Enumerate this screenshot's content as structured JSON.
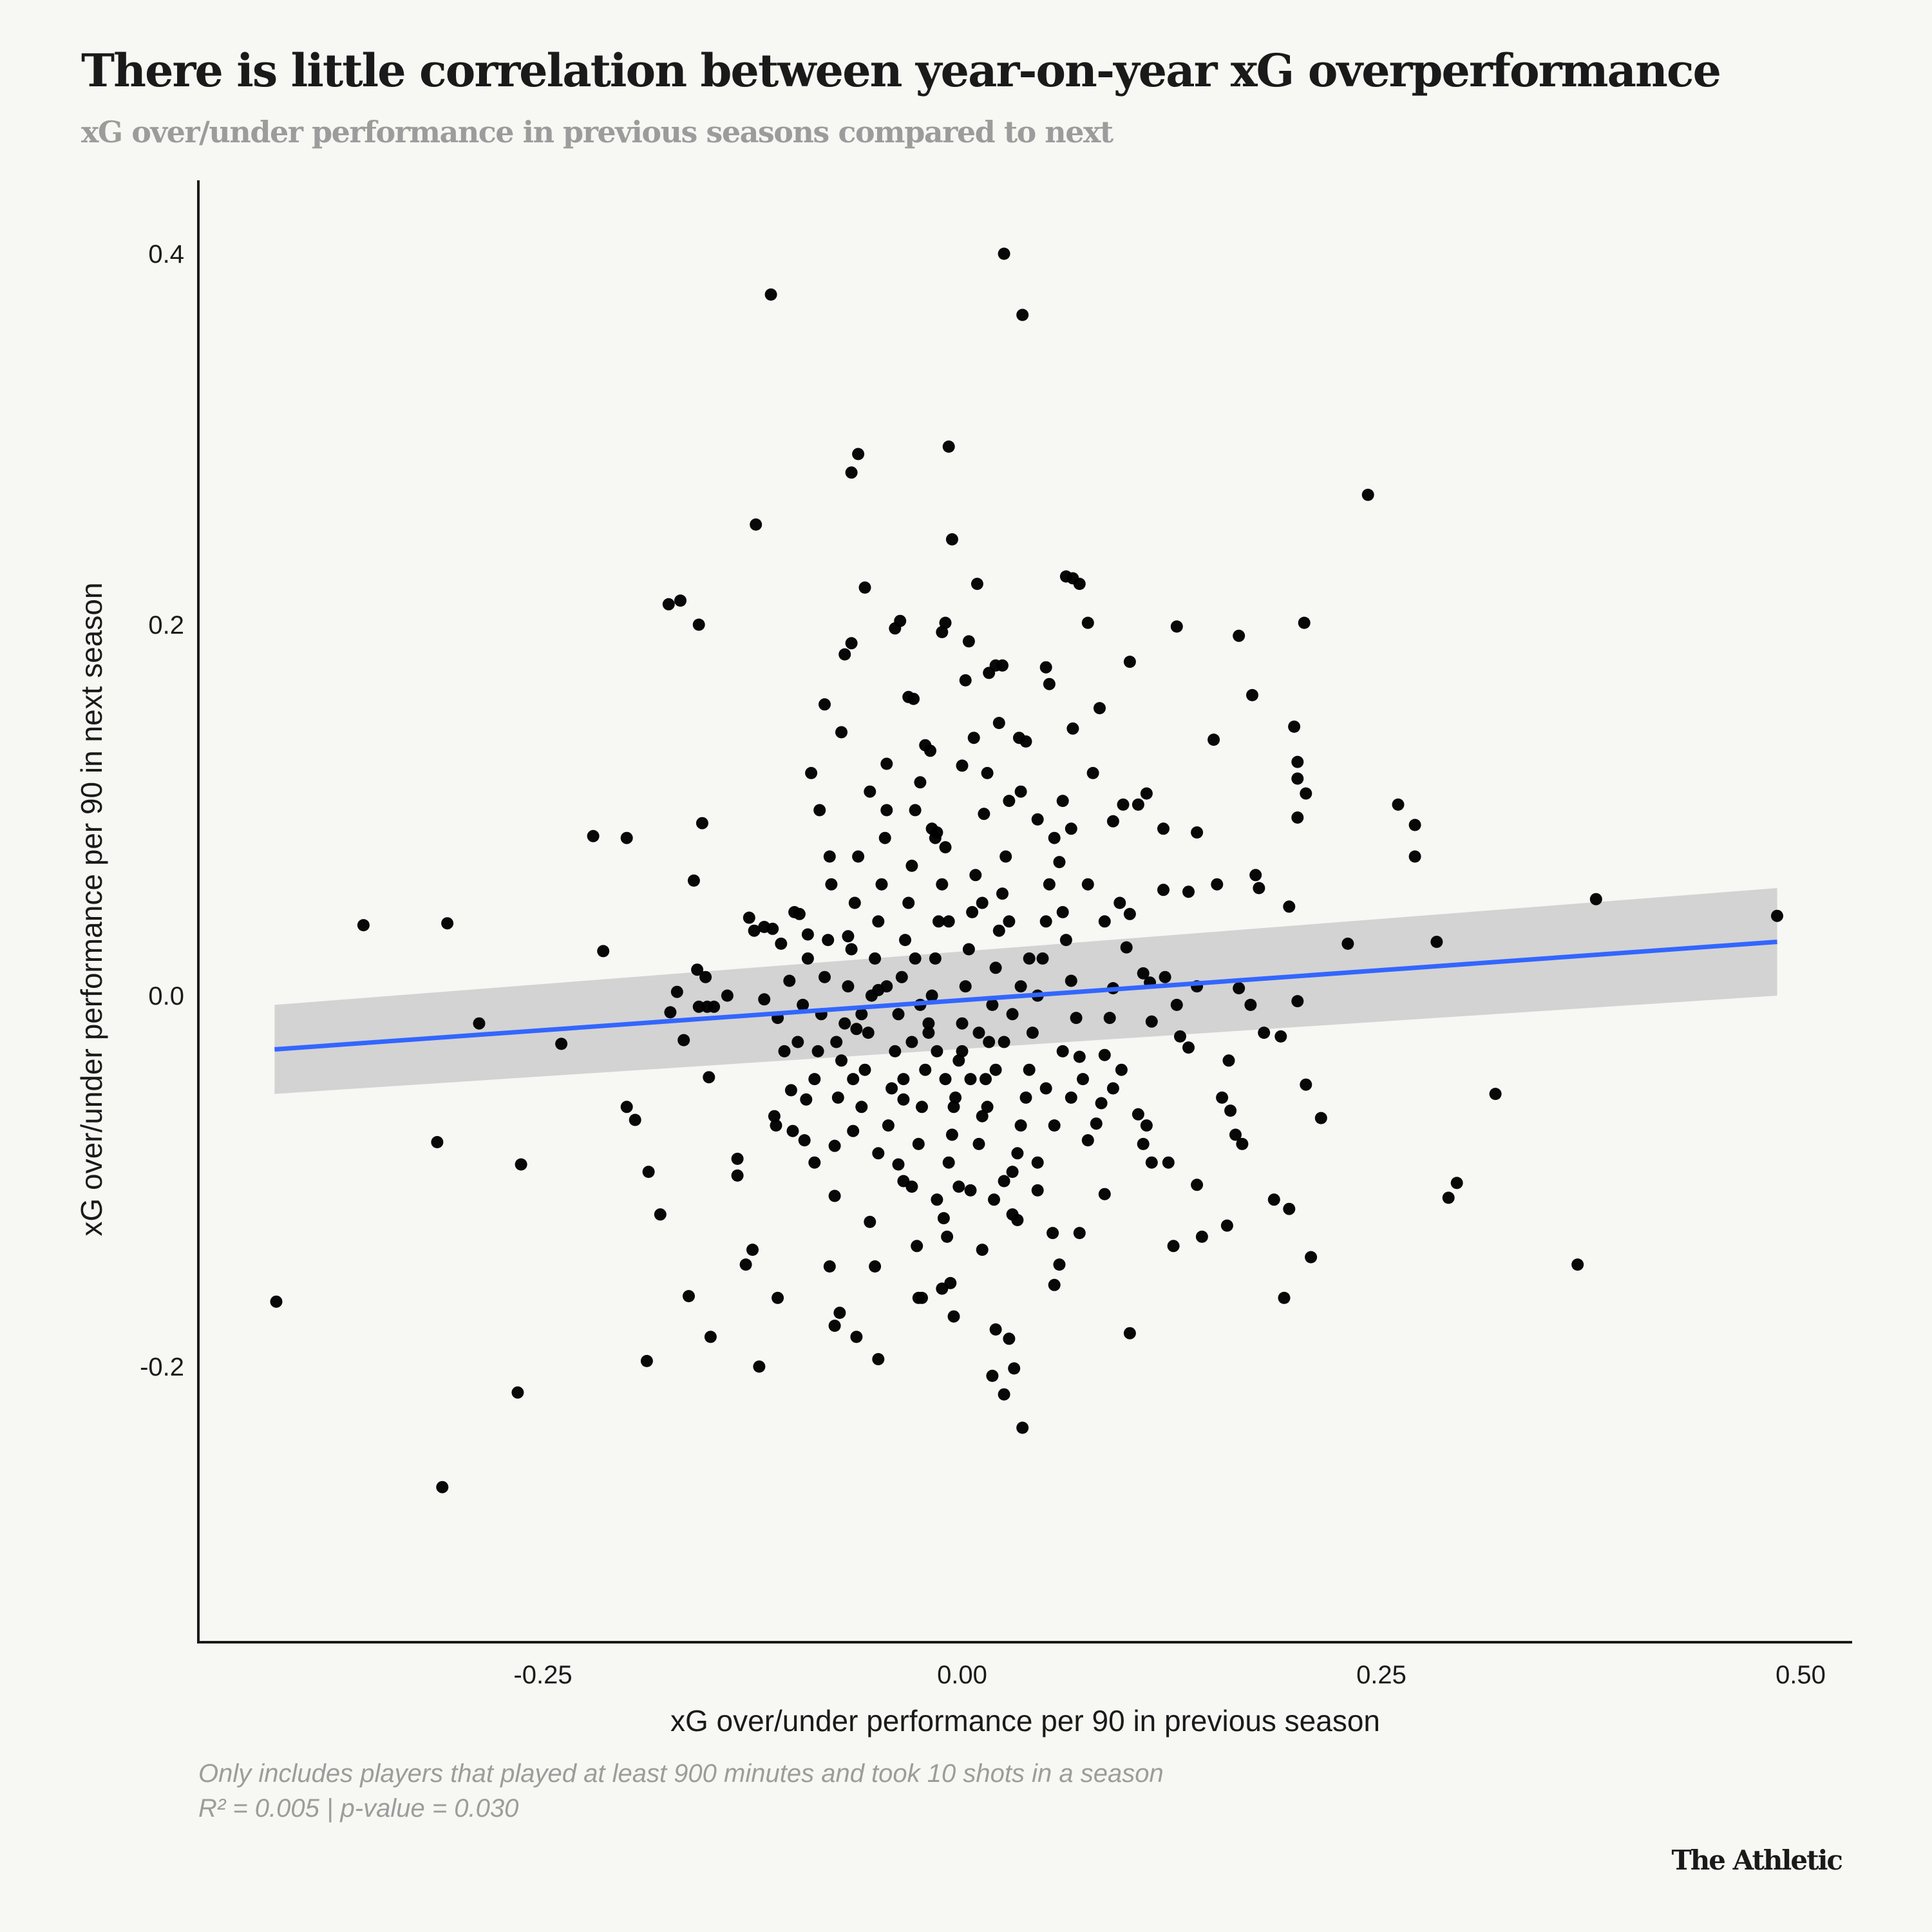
{
  "header": {
    "title": "There is little correlation between year-on-year xG overperformance",
    "subtitle": "xG over/under performance in previous seasons compared to next"
  },
  "notes": {
    "line1": "Only includes players that played at least 900 minutes and took 10 shots in a season",
    "line2": "R² = 0.005 | p-value = 0.030"
  },
  "logo": {
    "text": "The Athletic"
  },
  "colors": {
    "background": "#f7f7f3",
    "points": "#000000",
    "regression": "#3366ff",
    "ci_band": "#d1d1d1",
    "axis": "#1a1a1a"
  },
  "chart_data": {
    "type": "scatter",
    "title": "There is little correlation between year-on-year xG overperformance",
    "subtitle": "xG over/under performance in previous seasons compared to next",
    "xlabel": "xG over/under performance per 90 in previous season",
    "ylabel": "xG over/under performance per 90 in next season",
    "xlim": [
      -0.455,
      0.53
    ],
    "ylim": [
      -0.345,
      0.455
    ],
    "x_ticks": [
      -0.25,
      0.0,
      0.25,
      0.5
    ],
    "x_tick_labels": [
      "-0.25",
      "0.00",
      "0.25",
      "0.50"
    ],
    "y_ticks": [
      -0.2,
      0.0,
      0.2,
      0.4
    ],
    "y_tick_labels": [
      "-0.2",
      "0.0",
      "0.2",
      "0.4"
    ],
    "grid": false,
    "regression": {
      "x": [
        -0.41,
        0.486
      ],
      "y": [
        -0.029,
        0.029
      ],
      "ci_lower": [
        -0.053,
        0.0
      ],
      "ci_upper": [
        -0.005,
        0.058
      ]
    },
    "points": [
      [
        -0.409,
        -0.165
      ],
      [
        -0.357,
        0.038
      ],
      [
        -0.307,
        0.039
      ],
      [
        -0.313,
        -0.079
      ],
      [
        -0.288,
        -0.015
      ],
      [
        -0.263,
        -0.091
      ],
      [
        -0.265,
        -0.214
      ],
      [
        -0.31,
        -0.265
      ],
      [
        -0.239,
        -0.026
      ],
      [
        -0.22,
        0.086
      ],
      [
        -0.214,
        0.024
      ],
      [
        -0.2,
        0.085
      ],
      [
        -0.2,
        -0.06
      ],
      [
        -0.195,
        -0.067
      ],
      [
        -0.187,
        -0.095
      ],
      [
        -0.18,
        -0.118
      ],
      [
        -0.188,
        -0.197
      ],
      [
        -0.175,
        0.211
      ],
      [
        -0.168,
        0.213
      ],
      [
        -0.157,
        0.2
      ],
      [
        -0.174,
        -0.009
      ],
      [
        -0.17,
        0.002
      ],
      [
        -0.166,
        -0.024
      ],
      [
        -0.163,
        -0.162
      ],
      [
        -0.16,
        0.062
      ],
      [
        -0.155,
        0.093
      ],
      [
        -0.158,
        0.014
      ],
      [
        -0.153,
        0.01
      ],
      [
        -0.157,
        -0.006
      ],
      [
        -0.152,
        -0.006
      ],
      [
        -0.148,
        -0.006
      ],
      [
        -0.151,
        -0.044
      ],
      [
        -0.15,
        -0.184
      ],
      [
        -0.14,
        0.0
      ],
      [
        -0.134,
        -0.088
      ],
      [
        -0.134,
        -0.097
      ],
      [
        -0.129,
        -0.145
      ],
      [
        -0.125,
        -0.137
      ],
      [
        -0.123,
        0.254
      ],
      [
        -0.121,
        -0.2
      ],
      [
        -0.114,
        0.378
      ],
      [
        -0.127,
        0.042
      ],
      [
        -0.124,
        0.035
      ],
      [
        -0.118,
        0.037
      ],
      [
        -0.113,
        0.036
      ],
      [
        -0.118,
        -0.002
      ],
      [
        -0.112,
        -0.065
      ],
      [
        -0.111,
        -0.07
      ],
      [
        -0.102,
        -0.051
      ],
      [
        -0.11,
        -0.163
      ],
      [
        -0.101,
        -0.073
      ],
      [
        -0.097,
        0.044
      ],
      [
        -0.094,
        -0.078
      ],
      [
        -0.092,
        0.033
      ],
      [
        -0.093,
        -0.056
      ],
      [
        -0.088,
        -0.09
      ],
      [
        -0.082,
        0.157
      ],
      [
        -0.079,
        0.075
      ],
      [
        -0.076,
        -0.081
      ],
      [
        -0.076,
        -0.108
      ],
      [
        -0.079,
        -0.146
      ],
      [
        -0.076,
        -0.178
      ],
      [
        -0.073,
        -0.171
      ],
      [
        -0.072,
        0.142
      ],
      [
        -0.07,
        0.184
      ],
      [
        -0.066,
        0.19
      ],
      [
        -0.068,
        0.032
      ],
      [
        -0.063,
        -0.018
      ],
      [
        -0.065,
        -0.073
      ],
      [
        -0.063,
        -0.184
      ],
      [
        -0.066,
        0.282
      ],
      [
        -0.062,
        0.292
      ],
      [
        -0.058,
        0.22
      ],
      [
        -0.055,
        -0.122
      ],
      [
        -0.052,
        -0.146
      ],
      [
        -0.05,
        -0.196
      ],
      [
        -0.05,
        0.003
      ],
      [
        -0.045,
        0.125
      ],
      [
        -0.04,
        0.198
      ],
      [
        -0.037,
        0.202
      ],
      [
        -0.038,
        -0.091
      ],
      [
        -0.035,
        -0.056
      ],
      [
        -0.032,
        0.161
      ],
      [
        -0.029,
        0.16
      ],
      [
        -0.03,
        -0.103
      ],
      [
        -0.027,
        -0.135
      ],
      [
        -0.026,
        -0.163
      ],
      [
        -0.024,
        -0.163
      ],
      [
        -0.022,
        0.135
      ],
      [
        -0.019,
        0.132
      ],
      [
        -0.018,
        0.09
      ],
      [
        -0.016,
        0.085
      ],
      [
        -0.015,
        0.088
      ],
      [
        -0.012,
        0.196
      ],
      [
        -0.01,
        0.201
      ],
      [
        -0.008,
        0.296
      ],
      [
        -0.006,
        0.246
      ],
      [
        -0.011,
        -0.12
      ],
      [
        -0.009,
        -0.13
      ],
      [
        -0.012,
        -0.158
      ],
      [
        -0.007,
        -0.155
      ],
      [
        -0.005,
        -0.173
      ],
      [
        -0.002,
        -0.103
      ],
      [
        0.0,
        0.124
      ],
      [
        0.002,
        0.17
      ],
      [
        0.004,
        0.191
      ],
      [
        0.007,
        0.139
      ],
      [
        0.009,
        0.222
      ],
      [
        0.013,
        0.098
      ],
      [
        0.012,
        -0.137
      ],
      [
        0.016,
        0.174
      ],
      [
        0.02,
        0.178
      ],
      [
        0.024,
        0.178
      ],
      [
        0.022,
        0.147
      ],
      [
        0.025,
        0.4
      ],
      [
        0.019,
        -0.11
      ],
      [
        0.02,
        -0.18
      ],
      [
        0.018,
        -0.205
      ],
      [
        0.025,
        -0.215
      ],
      [
        0.028,
        -0.185
      ],
      [
        0.031,
        -0.201
      ],
      [
        0.034,
        0.139
      ],
      [
        0.036,
        0.367
      ],
      [
        0.03,
        -0.118
      ],
      [
        0.033,
        -0.121
      ],
      [
        0.036,
        -0.233
      ],
      [
        0.038,
        0.137
      ],
      [
        0.045,
        -0.105
      ],
      [
        0.05,
        0.177
      ],
      [
        0.052,
        0.168
      ],
      [
        0.054,
        -0.128
      ],
      [
        0.055,
        -0.156
      ],
      [
        0.058,
        -0.145
      ],
      [
        0.062,
        0.226
      ],
      [
        0.066,
        0.225
      ],
      [
        0.07,
        0.222
      ],
      [
        0.066,
        0.144
      ],
      [
        0.07,
        -0.128
      ],
      [
        0.075,
        0.201
      ],
      [
        0.082,
        0.155
      ],
      [
        0.085,
        -0.107
      ],
      [
        0.09,
        0.094
      ],
      [
        0.096,
        0.103
      ],
      [
        0.1,
        -0.182
      ],
      [
        0.1,
        0.18
      ],
      [
        0.105,
        0.103
      ],
      [
        0.11,
        0.109
      ],
      [
        0.12,
        0.057
      ],
      [
        0.12,
        0.09
      ],
      [
        0.123,
        -0.09
      ],
      [
        0.126,
        -0.135
      ],
      [
        0.128,
        0.199
      ],
      [
        0.135,
        0.056
      ],
      [
        0.14,
        0.088
      ],
      [
        0.14,
        -0.102
      ],
      [
        0.143,
        -0.13
      ],
      [
        0.15,
        0.138
      ],
      [
        0.152,
        0.06
      ],
      [
        0.158,
        -0.124
      ],
      [
        0.165,
        0.194
      ],
      [
        0.173,
        0.162
      ],
      [
        0.175,
        0.065
      ],
      [
        0.177,
        0.058
      ],
      [
        0.186,
        -0.11
      ],
      [
        0.195,
        -0.115
      ],
      [
        0.192,
        -0.163
      ],
      [
        0.198,
        0.145
      ],
      [
        0.2,
        0.126
      ],
      [
        0.2,
        0.117
      ],
      [
        0.2,
        0.096
      ],
      [
        0.205,
        0.109
      ],
      [
        0.204,
        0.201
      ],
      [
        0.208,
        -0.141
      ],
      [
        0.214,
        -0.066
      ],
      [
        0.23,
        0.028
      ],
      [
        0.242,
        0.27
      ],
      [
        0.26,
        0.103
      ],
      [
        0.283,
        0.029
      ],
      [
        0.27,
        0.092
      ],
      [
        0.27,
        0.075
      ],
      [
        0.29,
        -0.109
      ],
      [
        0.295,
        -0.101
      ],
      [
        0.318,
        -0.053
      ],
      [
        0.367,
        -0.145
      ],
      [
        0.378,
        0.052
      ],
      [
        0.486,
        0.043
      ],
      [
        0.195,
        0.048
      ],
      [
        0.2,
        -0.003
      ],
      [
        0.205,
        -0.048
      ],
      [
        0.19,
        -0.022
      ],
      [
        0.18,
        -0.02
      ],
      [
        0.172,
        -0.005
      ],
      [
        0.159,
        -0.035
      ],
      [
        0.155,
        -0.055
      ],
      [
        0.16,
        -0.062
      ],
      [
        0.163,
        -0.075
      ],
      [
        0.167,
        -0.08
      ],
      [
        0.165,
        0.004
      ],
      [
        0.14,
        0.005
      ],
      [
        0.135,
        -0.028
      ],
      [
        0.13,
        -0.022
      ],
      [
        0.128,
        -0.005
      ],
      [
        0.121,
        0.01
      ],
      [
        0.113,
        -0.014
      ],
      [
        0.112,
        0.007
      ],
      [
        0.108,
        0.012
      ],
      [
        0.105,
        -0.064
      ],
      [
        0.108,
        -0.08
      ],
      [
        0.11,
        -0.07
      ],
      [
        0.113,
        -0.09
      ],
      [
        0.1,
        0.044
      ],
      [
        0.098,
        0.026
      ],
      [
        0.094,
        0.05
      ],
      [
        0.09,
        0.004
      ],
      [
        0.088,
        -0.012
      ],
      [
        0.085,
        -0.032
      ],
      [
        0.083,
        -0.058
      ],
      [
        0.08,
        -0.069
      ],
      [
        0.075,
        -0.078
      ],
      [
        0.072,
        -0.045
      ],
      [
        0.07,
        -0.033
      ],
      [
        0.068,
        -0.012
      ],
      [
        0.065,
        0.008
      ],
      [
        0.062,
        0.03
      ],
      [
        0.06,
        0.045
      ],
      [
        0.058,
        0.072
      ],
      [
        0.055,
        0.085
      ],
      [
        0.052,
        0.06
      ],
      [
        0.05,
        0.04
      ],
      [
        0.048,
        0.02
      ],
      [
        0.045,
        0.0
      ],
      [
        0.042,
        -0.02
      ],
      [
        0.04,
        -0.04
      ],
      [
        0.038,
        -0.055
      ],
      [
        0.035,
        -0.07
      ],
      [
        0.033,
        -0.085
      ],
      [
        0.03,
        -0.095
      ],
      [
        0.028,
        0.105
      ],
      [
        0.026,
        0.075
      ],
      [
        0.024,
        0.055
      ],
      [
        0.022,
        0.035
      ],
      [
        0.02,
        0.015
      ],
      [
        0.018,
        -0.005
      ],
      [
        0.016,
        -0.025
      ],
      [
        0.014,
        -0.045
      ],
      [
        0.012,
        -0.065
      ],
      [
        0.01,
        -0.08
      ],
      [
        0.008,
        0.065
      ],
      [
        0.006,
        0.045
      ],
      [
        0.004,
        0.025
      ],
      [
        0.002,
        0.005
      ],
      [
        0.0,
        -0.015
      ],
      [
        -0.002,
        -0.035
      ],
      [
        -0.004,
        -0.055
      ],
      [
        -0.006,
        -0.075
      ],
      [
        -0.008,
        -0.09
      ],
      [
        -0.01,
        0.08
      ],
      [
        -0.012,
        0.06
      ],
      [
        -0.014,
        0.04
      ],
      [
        -0.016,
        0.02
      ],
      [
        -0.018,
        0.0
      ],
      [
        -0.02,
        -0.02
      ],
      [
        -0.022,
        -0.04
      ],
      [
        -0.024,
        -0.06
      ],
      [
        -0.026,
        -0.08
      ],
      [
        -0.028,
        0.1
      ],
      [
        -0.03,
        0.07
      ],
      [
        -0.032,
        0.05
      ],
      [
        -0.034,
        0.03
      ],
      [
        -0.036,
        0.01
      ],
      [
        -0.038,
        -0.01
      ],
      [
        -0.04,
        -0.03
      ],
      [
        -0.042,
        -0.05
      ],
      [
        -0.044,
        -0.07
      ],
      [
        -0.046,
        0.085
      ],
      [
        -0.048,
        0.06
      ],
      [
        -0.05,
        0.04
      ],
      [
        -0.052,
        0.02
      ],
      [
        -0.054,
        0.0
      ],
      [
        -0.056,
        -0.02
      ],
      [
        -0.058,
        -0.04
      ],
      [
        -0.06,
        -0.06
      ],
      [
        -0.062,
        0.075
      ],
      [
        -0.064,
        0.05
      ],
      [
        -0.066,
        0.025
      ],
      [
        -0.068,
        0.005
      ],
      [
        -0.07,
        -0.015
      ],
      [
        -0.072,
        -0.035
      ],
      [
        -0.074,
        -0.055
      ],
      [
        -0.078,
        0.06
      ],
      [
        -0.08,
        0.03
      ],
      [
        -0.082,
        0.01
      ],
      [
        -0.084,
        -0.01
      ],
      [
        -0.086,
        -0.03
      ],
      [
        -0.088,
        -0.045
      ],
      [
        -0.092,
        0.02
      ],
      [
        -0.095,
        -0.005
      ],
      [
        -0.098,
        -0.025
      ],
      [
        -0.1,
        0.045
      ],
      [
        -0.103,
        0.008
      ],
      [
        -0.106,
        -0.03
      ],
      [
        -0.108,
        0.028
      ],
      [
        -0.11,
        -0.012
      ],
      [
        -0.085,
        0.1
      ],
      [
        -0.09,
        0.12
      ],
      [
        -0.055,
        0.11
      ],
      [
        -0.045,
        0.1
      ],
      [
        -0.025,
        0.115
      ],
      [
        0.015,
        0.12
      ],
      [
        0.035,
        0.11
      ],
      [
        0.045,
        0.095
      ],
      [
        0.065,
        0.09
      ],
      [
        0.075,
        0.06
      ],
      [
        0.085,
        0.04
      ],
      [
        0.095,
        -0.04
      ],
      [
        0.09,
        -0.05
      ],
      [
        0.078,
        0.12
      ],
      [
        0.06,
        0.105
      ],
      [
        -0.015,
        -0.11
      ],
      [
        0.005,
        -0.105
      ],
      [
        0.025,
        -0.1
      ],
      [
        0.045,
        -0.09
      ],
      [
        -0.035,
        -0.1
      ],
      [
        -0.05,
        -0.085
      ],
      [
        0.055,
        -0.07
      ],
      [
        0.065,
        -0.055
      ],
      [
        -0.005,
        -0.06
      ],
      [
        -0.01,
        -0.045
      ],
      [
        -0.015,
        -0.03
      ],
      [
        -0.02,
        -0.015
      ],
      [
        0.0,
        -0.03
      ],
      [
        0.005,
        -0.045
      ],
      [
        0.01,
        -0.02
      ],
      [
        -0.025,
        -0.005
      ],
      [
        -0.03,
        -0.025
      ],
      [
        -0.035,
        -0.045
      ],
      [
        0.015,
        -0.06
      ],
      [
        0.02,
        -0.04
      ],
      [
        0.025,
        -0.025
      ],
      [
        0.03,
        -0.01
      ],
      [
        0.035,
        0.005
      ],
      [
        0.04,
        0.02
      ],
      [
        0.028,
        0.04
      ],
      [
        0.012,
        0.05
      ],
      [
        -0.008,
        0.04
      ],
      [
        -0.028,
        0.02
      ],
      [
        -0.045,
        0.005
      ],
      [
        -0.06,
        -0.01
      ],
      [
        -0.075,
        -0.025
      ],
      [
        -0.065,
        -0.045
      ],
      [
        0.05,
        -0.05
      ],
      [
        0.06,
        -0.03
      ]
    ]
  }
}
